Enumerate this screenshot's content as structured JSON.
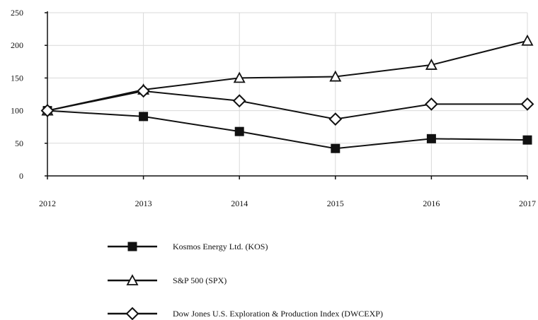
{
  "chart_data": {
    "type": "line",
    "x": [
      "2012",
      "2013",
      "2014",
      "2015",
      "2016",
      "2017"
    ],
    "ylim": [
      0,
      250
    ],
    "yticks": [
      0,
      50,
      100,
      150,
      200,
      250
    ],
    "grid": true,
    "legend_position": "bottom",
    "series": [
      {
        "name": "Kosmos Energy Ltd. (KOS)",
        "marker": "square-filled",
        "values": [
          100,
          91,
          68,
          42,
          57,
          55
        ]
      },
      {
        "name": "S&P 500 (SPX)",
        "marker": "triangle-open",
        "values": [
          100,
          132,
          150,
          152,
          170,
          207
        ]
      },
      {
        "name": "Dow Jones U.S. Exploration & Production Index (DWCEXP)",
        "marker": "diamond-open",
        "values": [
          100,
          130,
          115,
          87,
          110,
          110
        ]
      }
    ]
  }
}
